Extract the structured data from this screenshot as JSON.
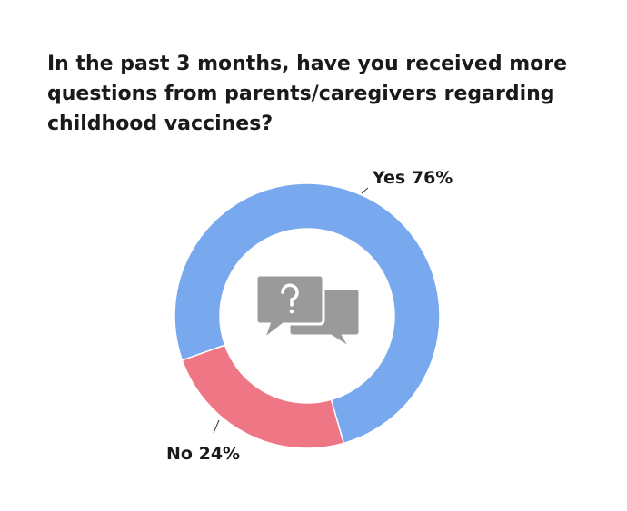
{
  "chart_data": {
    "type": "donut",
    "title": "In the past 3 months, have you received more questions from parents/caregivers regarding childhood vaccines?",
    "categories": [
      "Yes",
      "No"
    ],
    "values": [
      76,
      24
    ],
    "value_labels": [
      "76%",
      "24%"
    ],
    "colors": [
      "#78a9ef",
      "#ef7685"
    ]
  }
}
